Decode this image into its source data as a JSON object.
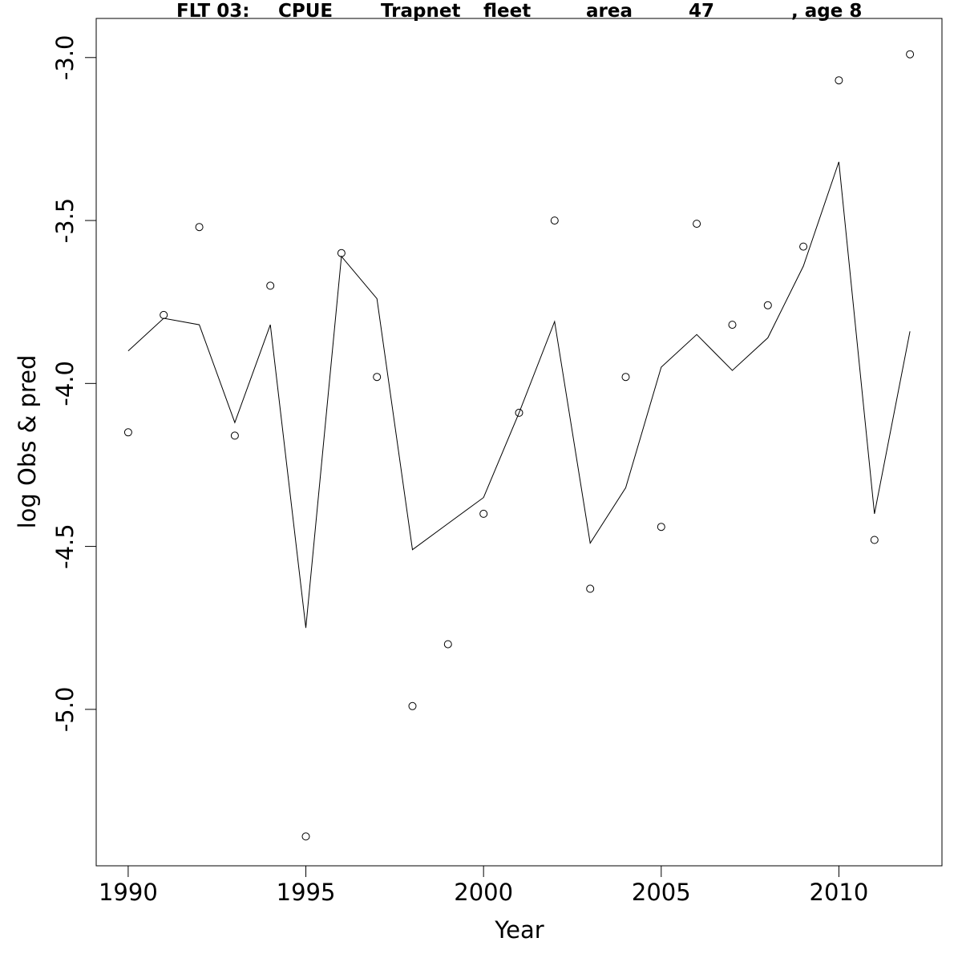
{
  "chart_data": {
    "type": "line",
    "title_parts": [
      "FLT 03:",
      "CPUE",
      "Trapnet",
      "fleet",
      "area",
      "47",
      ", age 8"
    ],
    "xlabel": "Year",
    "ylabel": "log Obs & pred",
    "xlim": [
      1989.1,
      2012.9
    ],
    "ylim": [
      -5.48,
      -2.88
    ],
    "x_ticks": [
      1990,
      1995,
      2000,
      2005,
      2010
    ],
    "y_ticks": [
      -5.0,
      -4.5,
      -4.0,
      -3.5,
      -3.0
    ],
    "x_tick_labels": [
      "1990",
      "1995",
      "2000",
      "2005",
      "2010"
    ],
    "y_tick_labels": [
      "-5.0",
      "-4.5",
      "-4.0",
      "-3.5",
      "-3.0"
    ],
    "grid": false,
    "legend": "none",
    "series": [
      {
        "style": "line",
        "x": [
          1990,
          1991,
          1992,
          1993,
          1994,
          1995,
          1996,
          1997,
          1998,
          1999,
          2000,
          2001,
          2002,
          2003,
          2004,
          2005,
          2006,
          2007,
          2008,
          2009,
          2010,
          2011,
          2012
        ],
        "y": [
          -3.9,
          -3.8,
          -3.82,
          -4.12,
          -3.82,
          -4.75,
          -3.61,
          -3.74,
          -4.51,
          -4.43,
          -4.35,
          -4.09,
          -3.81,
          -4.49,
          -4.32,
          -3.95,
          -3.85,
          -3.96,
          -3.86,
          -3.64,
          -3.32,
          -4.4,
          -3.84
        ]
      },
      {
        "style": "points",
        "marker": "open-circle",
        "x": [
          1990,
          1991,
          1992,
          1993,
          1994,
          1995,
          1996,
          1997,
          1998,
          1999,
          2000,
          2001,
          2002,
          2003,
          2004,
          2005,
          2006,
          2007,
          2008,
          2009,
          2010,
          2011,
          2012
        ],
        "y": [
          -4.15,
          -3.79,
          -3.52,
          -4.16,
          -3.7,
          -5.39,
          -3.6,
          -3.98,
          -4.99,
          -4.8,
          -4.4,
          -4.09,
          -3.5,
          -4.63,
          -3.98,
          -4.44,
          -3.51,
          -3.82,
          -3.76,
          -3.58,
          -3.07,
          -4.48,
          -2.99
        ]
      }
    ]
  }
}
